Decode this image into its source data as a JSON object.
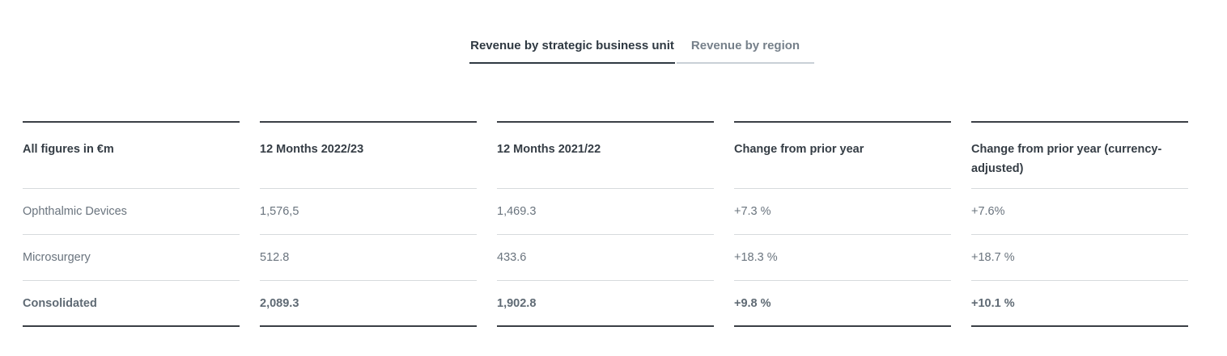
{
  "tabs": [
    {
      "label": "Revenue by strategic business unit",
      "active": true
    },
    {
      "label": "Revenue by region",
      "active": false
    }
  ],
  "table": {
    "columns": [
      {
        "header": "All figures in €m",
        "rows": [
          "Ophthalmic Devices",
          "Microsurgery"
        ],
        "total": "Consolidated"
      },
      {
        "header": "12 Months 2022/23",
        "rows": [
          "1,576,5",
          "512.8"
        ],
        "total": "2,089.3"
      },
      {
        "header": "12 Months 2021/22",
        "rows": [
          "1,469.3",
          "433.6"
        ],
        "total": "1,902.8"
      },
      {
        "header": "Change from prior year",
        "rows": [
          "+7.3 %",
          "+18.3 %"
        ],
        "total": "+9.8 %"
      },
      {
        "header": "Change from prior year (currency-adjusted)",
        "rows": [
          "+7.6%",
          "+18.7 %"
        ],
        "total": "+10.1 %"
      }
    ]
  }
}
